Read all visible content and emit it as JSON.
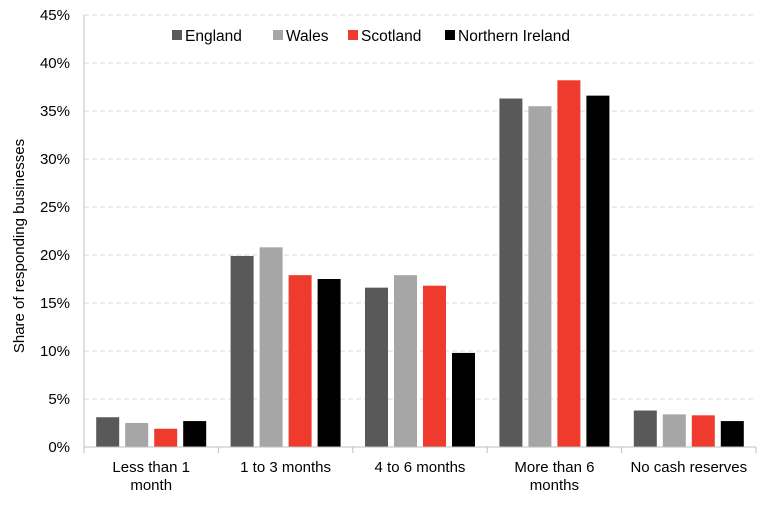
{
  "chart_data": {
    "type": "bar",
    "title": "",
    "xlabel": "",
    "ylabel": "Share of responding businesses",
    "ylim": [
      0,
      45
    ],
    "yticks": [
      "0%",
      "5%",
      "10%",
      "15%",
      "20%",
      "25%",
      "30%",
      "35%",
      "40%",
      "45%"
    ],
    "grid": true,
    "legend_position": "top",
    "categories": [
      [
        "Less than 1",
        "month"
      ],
      [
        "1 to 3 months"
      ],
      [
        "4 to 6 months"
      ],
      [
        "More than 6",
        "months"
      ],
      [
        "No cash reserves"
      ]
    ],
    "series": [
      {
        "name": "England",
        "color": "#595959",
        "values": [
          3.1,
          19.9,
          16.6,
          36.3,
          3.8
        ]
      },
      {
        "name": "Wales",
        "color": "#a6a6a6",
        "values": [
          2.5,
          20.8,
          17.9,
          35.5,
          3.4
        ]
      },
      {
        "name": "Scotland",
        "color": "#ee3b2d",
        "values": [
          1.9,
          17.9,
          16.8,
          38.2,
          3.3
        ]
      },
      {
        "name": "Northern Ireland",
        "color": "#000000",
        "values": [
          2.7,
          17.5,
          9.8,
          36.6,
          2.7
        ]
      }
    ]
  }
}
